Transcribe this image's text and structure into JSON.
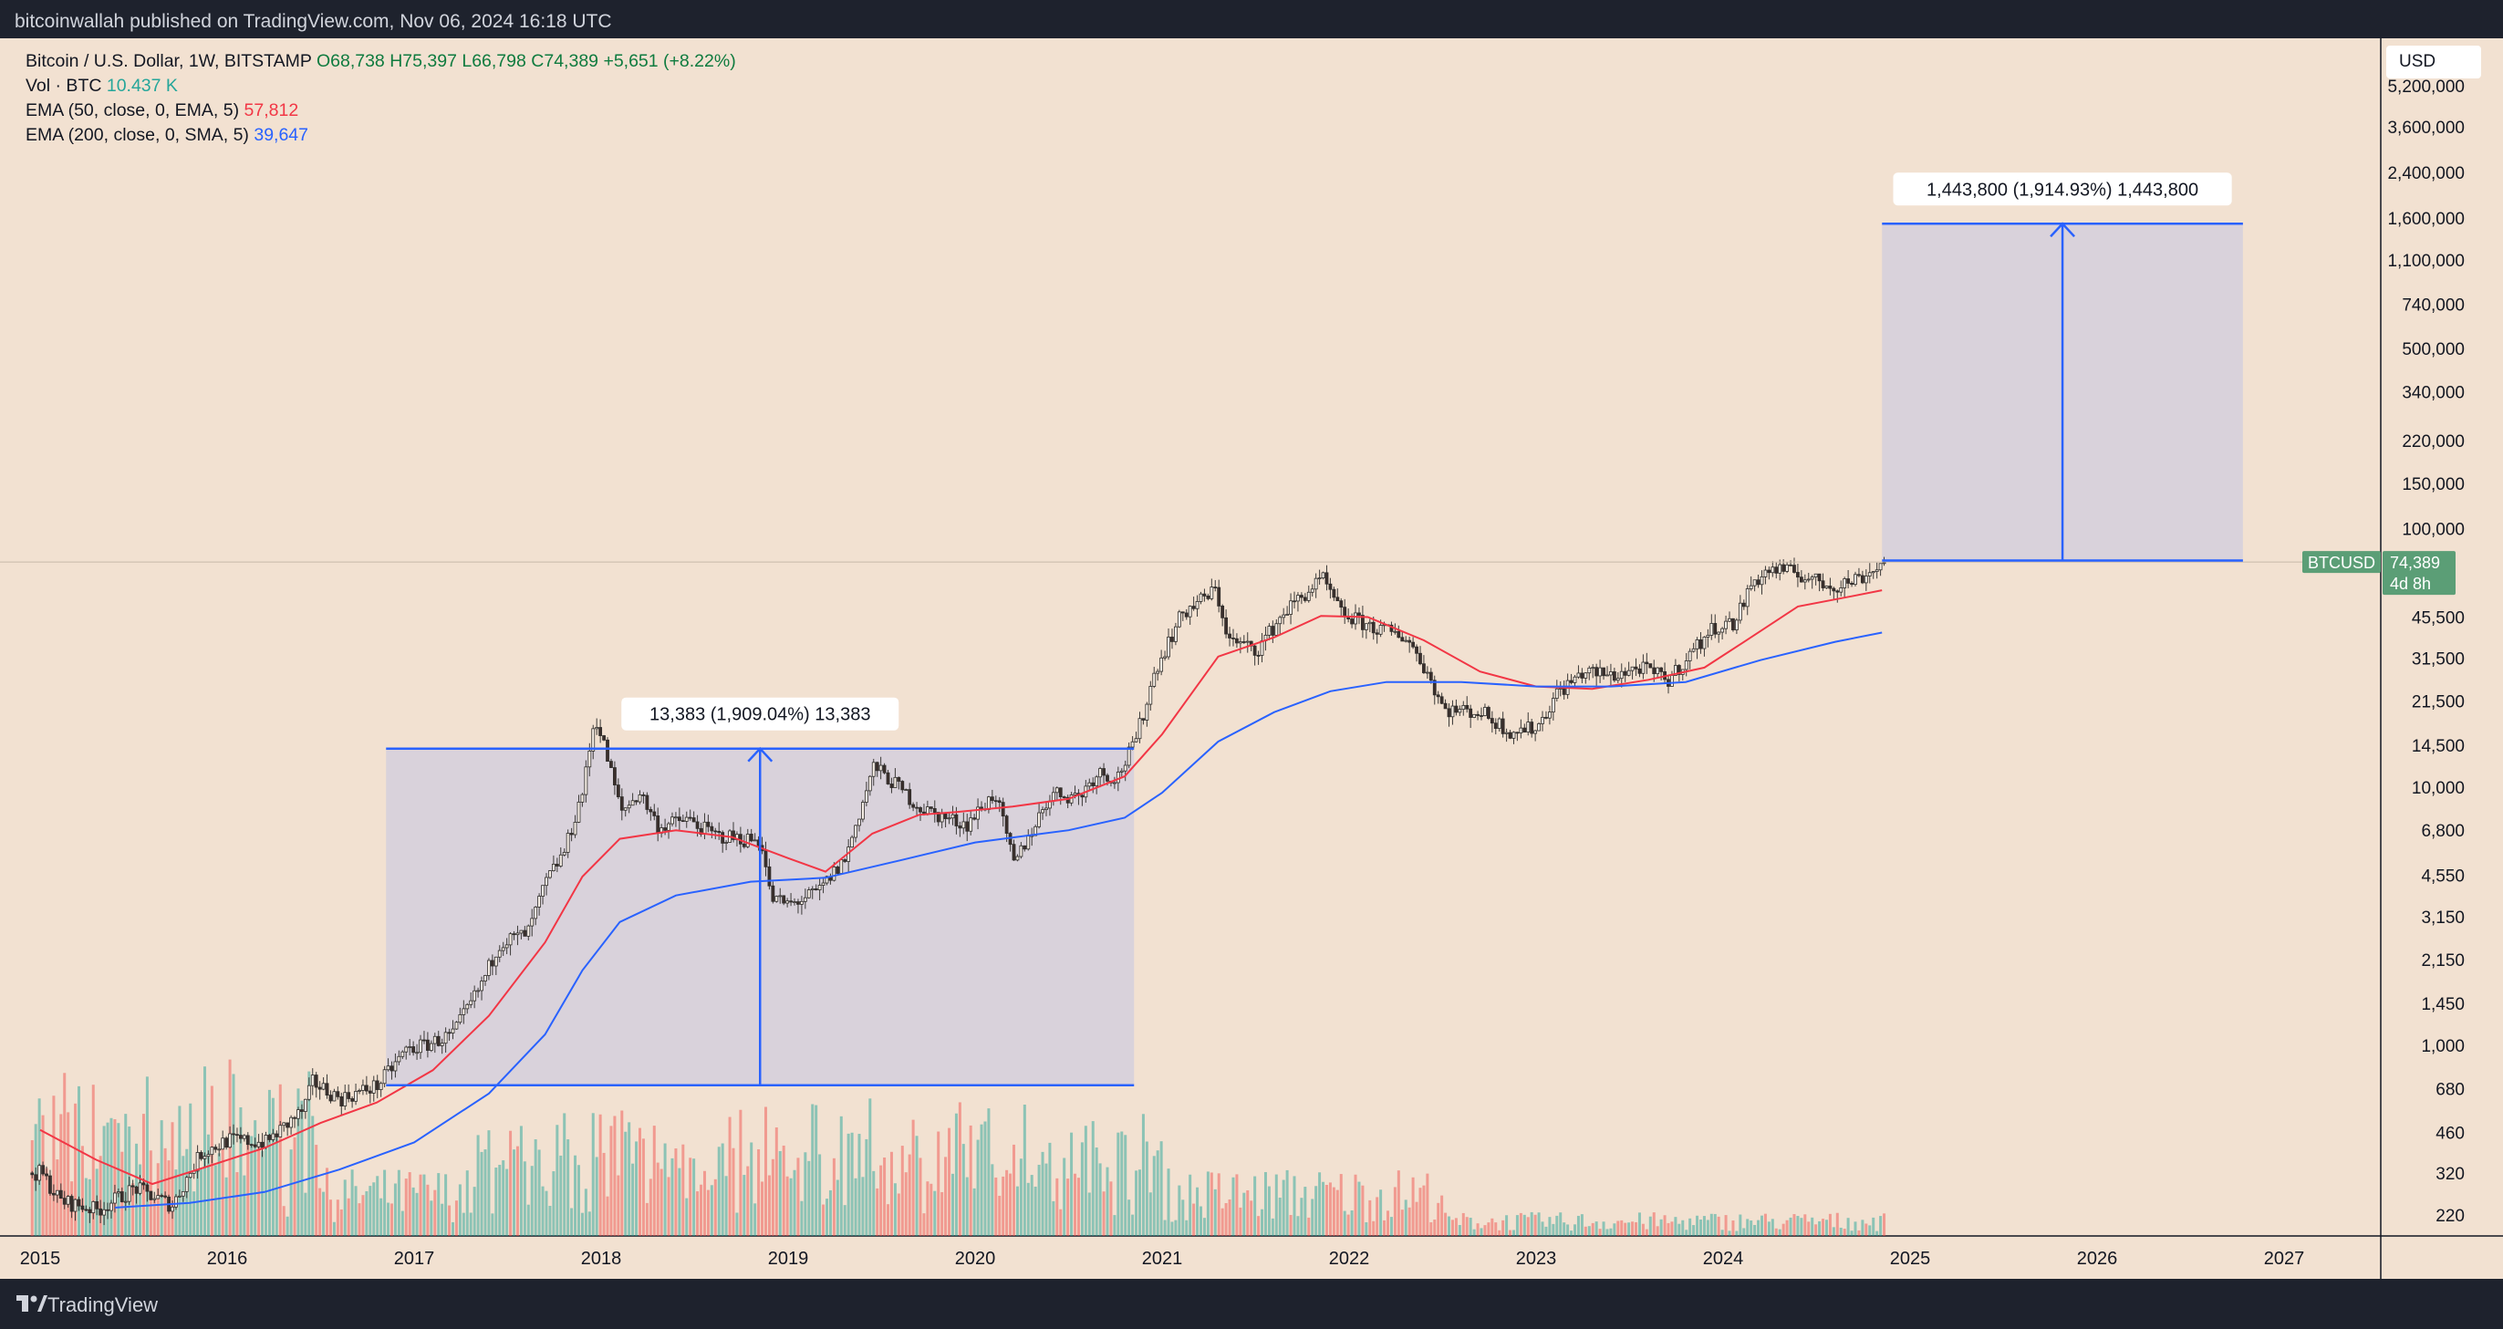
{
  "header": {
    "publisher_line": "bitcoinwallah published on TradingView.com, Nov 06, 2024 16:18 UTC"
  },
  "legend": {
    "symbol": "Bitcoin / U.S. Dollar, 1W, BITSTAMP",
    "open": "O68,738",
    "high": "H75,397",
    "low": "L66,798",
    "close": "C74,389",
    "change": "+5,651 (+8.22%)",
    "vol_label": "Vol · BTC",
    "vol_value": "10.437 K",
    "ema50_label": "EMA (50, close, 0, EMA, 5)",
    "ema50_value": "57,812",
    "ema200_label": "EMA (200, close, 0, SMA, 5)",
    "ema200_value": "39,647"
  },
  "currency_button": "USD",
  "price_tag": {
    "symbol": "BTCUSD",
    "price": "74,389",
    "countdown": "4d 8h"
  },
  "footer": {
    "brand": "TradingView"
  },
  "colors": {
    "background": "#f2e1d1",
    "up": "#26a69a",
    "down": "#ef5350",
    "ema50": "#f23645",
    "ema200": "#2962ff",
    "measure": "#2962ff",
    "measure_fill": "#d5cfdd",
    "price_tag": "#5b9e76"
  },
  "chart_data": {
    "type": "candlestick",
    "scale": "log",
    "x_ticks": [
      {
        "label": "2015",
        "year": 2015
      },
      {
        "label": "2016",
        "year": 2016
      },
      {
        "label": "2017",
        "year": 2017
      },
      {
        "label": "2018",
        "year": 2018
      },
      {
        "label": "2019",
        "year": 2019
      },
      {
        "label": "2020",
        "year": 2020
      },
      {
        "label": "2021",
        "year": 2021
      },
      {
        "label": "2022",
        "year": 2022
      },
      {
        "label": "2023",
        "year": 2023
      },
      {
        "label": "2024",
        "year": 2024
      },
      {
        "label": "2025",
        "year": 2025
      },
      {
        "label": "2026",
        "year": 2026
      },
      {
        "label": "2027",
        "year": 2027
      }
    ],
    "y_ticks": [
      {
        "label": "5,200,000",
        "value": 5200000
      },
      {
        "label": "3,600,000",
        "value": 3600000
      },
      {
        "label": "2,400,000",
        "value": 2400000
      },
      {
        "label": "1,600,000",
        "value": 1600000
      },
      {
        "label": "1,100,000",
        "value": 1100000
      },
      {
        "label": "740,000",
        "value": 740000
      },
      {
        "label": "500,000",
        "value": 500000
      },
      {
        "label": "340,000",
        "value": 340000
      },
      {
        "label": "220,000",
        "value": 220000
      },
      {
        "label": "150,000",
        "value": 150000
      },
      {
        "label": "100,000",
        "value": 100000
      },
      {
        "label": "45,500",
        "value": 45500
      },
      {
        "label": "31,500",
        "value": 31500
      },
      {
        "label": "21,500",
        "value": 21500
      },
      {
        "label": "14,500",
        "value": 14500
      },
      {
        "label": "10,000",
        "value": 10000
      },
      {
        "label": "6,800",
        "value": 6800
      },
      {
        "label": "4,550",
        "value": 4550
      },
      {
        "label": "3,150",
        "value": 3150
      },
      {
        "label": "2,150",
        "value": 2150
      },
      {
        "label": "1,450",
        "value": 1450
      },
      {
        "label": "1,000",
        "value": 1000
      },
      {
        "label": "680",
        "value": 680
      },
      {
        "label": "460",
        "value": 460
      },
      {
        "label": "320",
        "value": 320
      },
      {
        "label": "220",
        "value": 220
      }
    ],
    "price_path": [
      [
        2015.0,
        320
      ],
      [
        2015.1,
        250
      ],
      [
        2015.3,
        230
      ],
      [
        2015.5,
        280
      ],
      [
        2015.7,
        240
      ],
      [
        2015.85,
        380
      ],
      [
        2016.0,
        430
      ],
      [
        2016.2,
        420
      ],
      [
        2016.4,
        560
      ],
      [
        2016.45,
        720
      ],
      [
        2016.6,
        620
      ],
      [
        2016.8,
        700
      ],
      [
        2016.95,
        960
      ],
      [
        2017.05,
        1000
      ],
      [
        2017.2,
        1100
      ],
      [
        2017.35,
        1700
      ],
      [
        2017.45,
        2500
      ],
      [
        2017.6,
        2700
      ],
      [
        2017.7,
        4300
      ],
      [
        2017.8,
        5700
      ],
      [
        2017.9,
        10000
      ],
      [
        2017.96,
        19000
      ],
      [
        2018.02,
        13500
      ],
      [
        2018.1,
        8000
      ],
      [
        2018.2,
        9500
      ],
      [
        2018.3,
        7000
      ],
      [
        2018.45,
        7500
      ],
      [
        2018.6,
        6500
      ],
      [
        2018.75,
        6300
      ],
      [
        2018.85,
        6200
      ],
      [
        2018.9,
        3700
      ],
      [
        2019.0,
        3500
      ],
      [
        2019.15,
        3900
      ],
      [
        2019.3,
        5300
      ],
      [
        2019.45,
        12000
      ],
      [
        2019.55,
        10500
      ],
      [
        2019.7,
        8300
      ],
      [
        2019.85,
        7500
      ],
      [
        2019.95,
        7200
      ],
      [
        2020.1,
        9500
      ],
      [
        2020.2,
        5000
      ],
      [
        2020.4,
        9500
      ],
      [
        2020.55,
        9200
      ],
      [
        2020.65,
        11500
      ],
      [
        2020.75,
        10800
      ],
      [
        2020.85,
        15000
      ],
      [
        2020.96,
        29000
      ],
      [
        2021.1,
        47000
      ],
      [
        2021.28,
        58000
      ],
      [
        2021.35,
        37000
      ],
      [
        2021.5,
        34000
      ],
      [
        2021.65,
        48000
      ],
      [
        2021.85,
        64000
      ],
      [
        2021.95,
        47000
      ],
      [
        2022.1,
        42000
      ],
      [
        2022.3,
        38000
      ],
      [
        2022.4,
        29000
      ],
      [
        2022.5,
        20000
      ],
      [
        2022.7,
        19500
      ],
      [
        2022.85,
        16500
      ],
      [
        2023.0,
        17000
      ],
      [
        2023.1,
        23000
      ],
      [
        2023.25,
        28000
      ],
      [
        2023.4,
        27000
      ],
      [
        2023.55,
        29000
      ],
      [
        2023.7,
        26000
      ],
      [
        2023.85,
        35000
      ],
      [
        2023.95,
        42000
      ],
      [
        2024.05,
        43000
      ],
      [
        2024.15,
        62000
      ],
      [
        2024.25,
        70000
      ],
      [
        2024.4,
        67000
      ],
      [
        2024.5,
        62000
      ],
      [
        2024.6,
        60000
      ],
      [
        2024.75,
        66000
      ],
      [
        2024.85,
        74389
      ]
    ],
    "ema50": [
      [
        2015.0,
        470
      ],
      [
        2015.3,
        360
      ],
      [
        2015.6,
        290
      ],
      [
        2015.9,
        340
      ],
      [
        2016.2,
        400
      ],
      [
        2016.5,
        500
      ],
      [
        2016.8,
        600
      ],
      [
        2017.1,
        800
      ],
      [
        2017.4,
        1300
      ],
      [
        2017.7,
        2500
      ],
      [
        2017.9,
        4500
      ],
      [
        2018.1,
        6300
      ],
      [
        2018.4,
        6800
      ],
      [
        2018.7,
        6400
      ],
      [
        2019.0,
        5300
      ],
      [
        2019.2,
        4700
      ],
      [
        2019.45,
        6600
      ],
      [
        2019.7,
        7800
      ],
      [
        2019.9,
        8000
      ],
      [
        2020.2,
        8400
      ],
      [
        2020.5,
        9000
      ],
      [
        2020.8,
        11000
      ],
      [
        2021.0,
        16000
      ],
      [
        2021.3,
        32000
      ],
      [
        2021.6,
        38000
      ],
      [
        2021.85,
        46000
      ],
      [
        2022.1,
        45500
      ],
      [
        2022.4,
        37000
      ],
      [
        2022.7,
        28000
      ],
      [
        2023.0,
        24500
      ],
      [
        2023.3,
        24000
      ],
      [
        2023.6,
        26000
      ],
      [
        2023.9,
        29000
      ],
      [
        2024.1,
        36000
      ],
      [
        2024.4,
        50000
      ],
      [
        2024.7,
        55000
      ],
      [
        2024.85,
        57812
      ]
    ],
    "ema200": [
      [
        2015.4,
        235
      ],
      [
        2015.8,
        245
      ],
      [
        2016.2,
        270
      ],
      [
        2016.6,
        330
      ],
      [
        2017.0,
        420
      ],
      [
        2017.4,
        650
      ],
      [
        2017.7,
        1100
      ],
      [
        2017.9,
        1950
      ],
      [
        2018.1,
        3000
      ],
      [
        2018.4,
        3800
      ],
      [
        2018.8,
        4300
      ],
      [
        2019.2,
        4450
      ],
      [
        2019.6,
        5200
      ],
      [
        2020.0,
        6100
      ],
      [
        2020.5,
        6800
      ],
      [
        2020.8,
        7600
      ],
      [
        2021.0,
        9500
      ],
      [
        2021.3,
        15000
      ],
      [
        2021.6,
        19500
      ],
      [
        2021.9,
        23500
      ],
      [
        2022.2,
        25500
      ],
      [
        2022.6,
        25500
      ],
      [
        2023.0,
        24500
      ],
      [
        2023.4,
        24500
      ],
      [
        2023.8,
        25500
      ],
      [
        2024.2,
        31000
      ],
      [
        2024.6,
        36500
      ],
      [
        2024.85,
        39647
      ]
    ],
    "volume_overlay": true,
    "measurements": [
      {
        "label": "13,383 (1,909.04%) 13,383",
        "x_start": 2016.85,
        "x_end": 2020.85,
        "y_low": 700,
        "y_high": 14083
      },
      {
        "label": "1,443,800 (1,914.93%) 1,443,800",
        "x_start": 2024.85,
        "x_end": 2026.78,
        "y_low": 75397,
        "y_high": 1519197
      }
    ],
    "last_price": 74389
  }
}
